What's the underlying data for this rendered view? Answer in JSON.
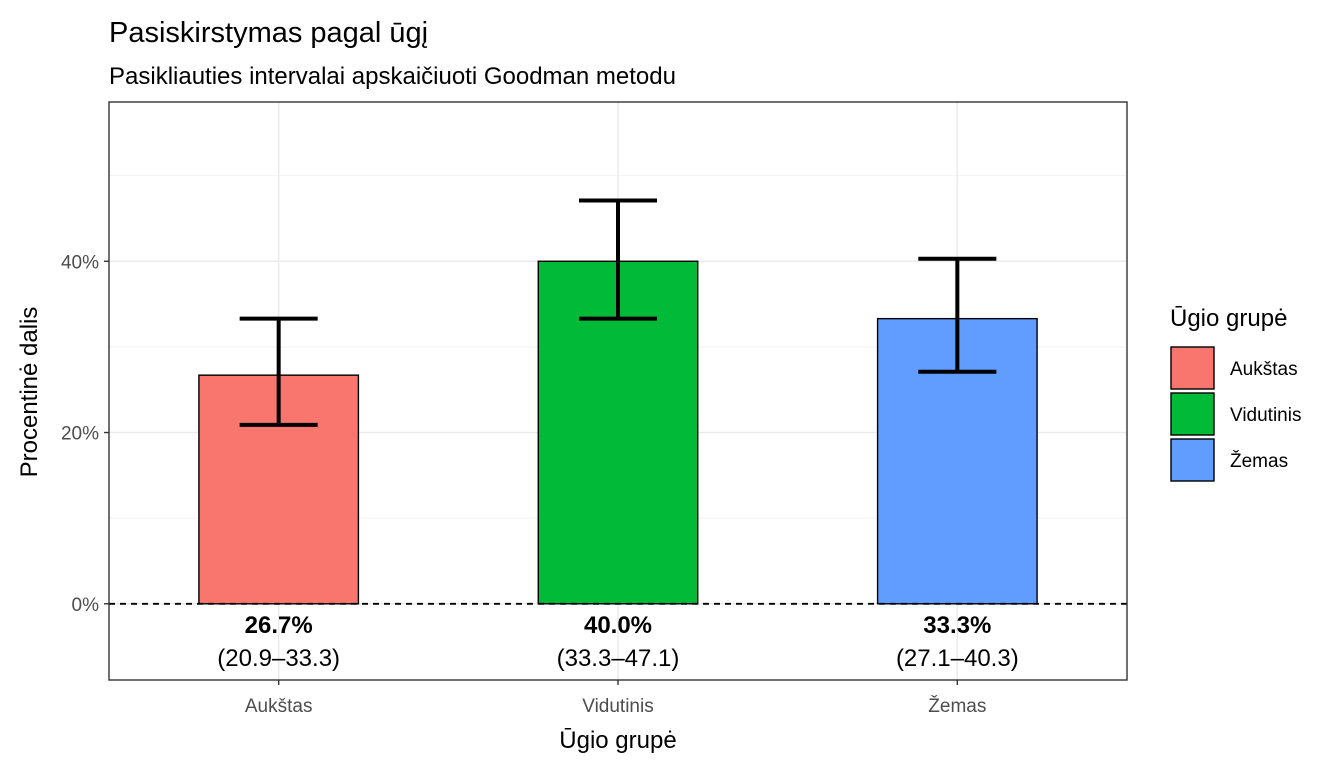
{
  "chart_data": {
    "type": "bar",
    "title": "Pasiskirstymas pagal ūgį",
    "subtitle": "Pasikliauties intervalai apskaičiuoti Goodman metodu",
    "xlabel": "Ūgio grupė",
    "ylabel": "Procentinė dalis",
    "categories": [
      "Aukštas",
      "Vidutinis",
      "Žemas"
    ],
    "values": [
      26.7,
      40.0,
      33.3
    ],
    "ci_lower": [
      20.9,
      33.3,
      27.1
    ],
    "ci_upper": [
      33.3,
      47.1,
      40.3
    ],
    "value_labels": [
      "26.7%",
      "40.0%",
      "33.3%"
    ],
    "ci_labels": [
      "(20.9–33.3)",
      "(33.3–47.1)",
      "(27.1–40.3)"
    ],
    "colors": [
      "#F8766D",
      "#00BA38",
      "#619CFF"
    ],
    "ylim": [
      -8.9,
      58.6
    ],
    "y_ticks": [
      0,
      20,
      40
    ],
    "y_tick_labels": [
      "0%",
      "20%",
      "40%"
    ],
    "reference_line": 0,
    "grid": true,
    "legend": {
      "title": "Ūgio grupė",
      "placement": "right",
      "items": [
        "Aukštas",
        "Vidutinis",
        "Žemas"
      ]
    }
  }
}
